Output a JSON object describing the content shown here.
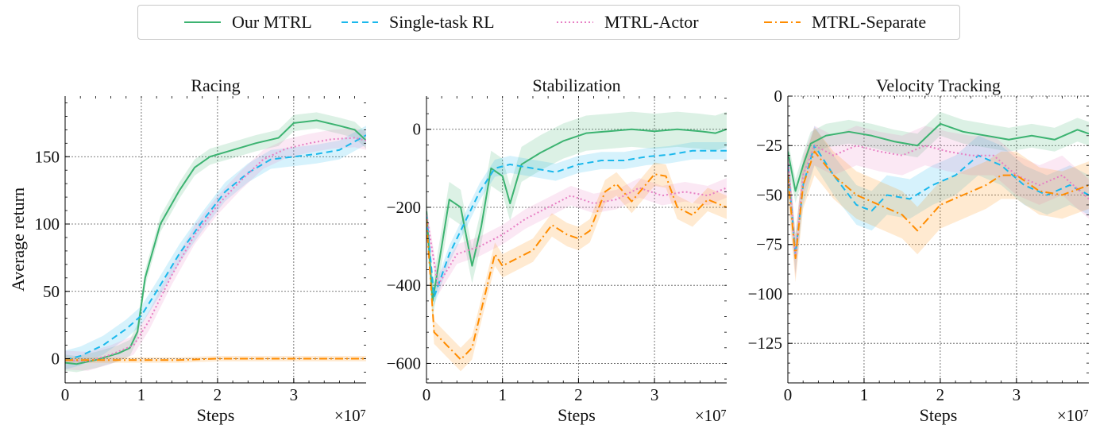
{
  "legend": {
    "items": [
      {
        "label": "Our MTRL",
        "color": "#3cb371",
        "dash": ""
      },
      {
        "label": "Single-task RL",
        "color": "#1ab8ec",
        "dash": "8,5"
      },
      {
        "label": "MTRL-Actor",
        "color": "#e77fc4",
        "dash": "2,3"
      },
      {
        "label": "MTRL-Separate",
        "color": "#ff8c00",
        "dash": "10,4,2,4"
      }
    ]
  },
  "chart_data": [
    {
      "type": "line",
      "title": "Racing",
      "xlabel": "Steps",
      "ylabel": "Average return",
      "x_multiplier": "×10⁷",
      "xlim": [
        0,
        3.95
      ],
      "ylim": [
        -18,
        195
      ],
      "xticks": [
        0,
        1,
        2,
        3
      ],
      "yticks": [
        0,
        50,
        100,
        150
      ],
      "grid": true,
      "series": [
        {
          "name": "Our MTRL",
          "band": 6,
          "x": [
            0,
            0.15,
            0.4,
            0.7,
            0.85,
            0.95,
            1.05,
            1.25,
            1.5,
            1.7,
            1.9,
            2.2,
            2.5,
            2.8,
            3.0,
            3.3,
            3.6,
            3.8,
            3.95
          ],
          "y": [
            -3,
            -4,
            -1,
            4,
            8,
            20,
            60,
            100,
            125,
            142,
            150,
            155,
            160,
            164,
            175,
            177,
            173,
            170,
            162
          ]
        },
        {
          "name": "Single-task RL",
          "band": 7,
          "x": [
            0,
            0.2,
            0.5,
            0.8,
            1.0,
            1.2,
            1.5,
            1.8,
            2.1,
            2.4,
            2.7,
            3.0,
            3.3,
            3.6,
            3.95
          ],
          "y": [
            -1,
            2,
            10,
            22,
            32,
            50,
            78,
            102,
            124,
            138,
            148,
            150,
            152,
            155,
            166
          ]
        },
        {
          "name": "MTRL-Actor",
          "band": 7,
          "x": [
            0,
            0.3,
            0.6,
            0.9,
            1.1,
            1.4,
            1.7,
            2.0,
            2.3,
            2.6,
            2.9,
            3.2,
            3.5,
            3.8,
            3.95
          ],
          "y": [
            -1,
            -2,
            3,
            10,
            28,
            62,
            92,
            114,
            132,
            148,
            156,
            160,
            163,
            164,
            162
          ]
        },
        {
          "name": "MTRL-Separate",
          "band": 2,
          "x": [
            0,
            0.5,
            1.0,
            1.5,
            2.0,
            2.5,
            3.0,
            3.5,
            3.95
          ],
          "y": [
            -1,
            -1,
            -1,
            -1,
            0,
            0,
            0,
            0,
            0
          ]
        }
      ]
    },
    {
      "type": "line",
      "title": "Stabilization",
      "xlabel": "Steps",
      "ylabel": "",
      "x_multiplier": "×10⁷",
      "xlim": [
        0,
        3.95
      ],
      "ylim": [
        -650,
        85
      ],
      "xticks": [
        0,
        1,
        2,
        3
      ],
      "yticks": [
        0,
        -200,
        -400,
        -600
      ],
      "grid": true,
      "series": [
        {
          "name": "Our MTRL",
          "band": 45,
          "x": [
            0,
            0.08,
            0.2,
            0.3,
            0.45,
            0.6,
            0.72,
            0.85,
            1.0,
            1.1,
            1.25,
            1.5,
            1.8,
            2.1,
            2.4,
            2.7,
            3.0,
            3.3,
            3.6,
            3.8,
            3.95
          ],
          "y": [
            -210,
            -440,
            -300,
            -180,
            -200,
            -350,
            -250,
            -100,
            -120,
            -190,
            -90,
            -60,
            -30,
            -10,
            -5,
            0,
            -5,
            0,
            -5,
            -10,
            0
          ]
        },
        {
          "name": "Single-task RL",
          "band": 22,
          "x": [
            0,
            0.1,
            0.3,
            0.5,
            0.7,
            0.9,
            1.1,
            1.4,
            1.7,
            2.0,
            2.3,
            2.6,
            2.9,
            3.2,
            3.5,
            3.95
          ],
          "y": [
            -220,
            -430,
            -320,
            -240,
            -160,
            -100,
            -90,
            -100,
            -110,
            -90,
            -80,
            -80,
            -70,
            -65,
            -55,
            -55
          ]
        },
        {
          "name": "MTRL-Actor",
          "band": 25,
          "x": [
            0,
            0.15,
            0.4,
            0.7,
            1.0,
            1.3,
            1.6,
            1.9,
            2.2,
            2.5,
            2.8,
            3.1,
            3.4,
            3.7,
            3.95
          ],
          "y": [
            -220,
            -400,
            -320,
            -300,
            -270,
            -230,
            -200,
            -170,
            -190,
            -180,
            -150,
            -170,
            -160,
            -170,
            -150
          ]
        },
        {
          "name": "MTRL-Separate",
          "band": 30,
          "x": [
            0,
            0.1,
            0.25,
            0.45,
            0.6,
            0.75,
            0.9,
            1.0,
            1.2,
            1.4,
            1.65,
            1.85,
            2.0,
            2.15,
            2.35,
            2.5,
            2.7,
            2.85,
            3.0,
            3.15,
            3.3,
            3.5,
            3.7,
            3.95
          ],
          "y": [
            -230,
            -520,
            -550,
            -590,
            -560,
            -440,
            -320,
            -350,
            -330,
            -310,
            -245,
            -270,
            -280,
            -260,
            -160,
            -140,
            -185,
            -150,
            -115,
            -120,
            -200,
            -220,
            -180,
            -200
          ]
        }
      ]
    },
    {
      "type": "line",
      "title": "Velocity Tracking",
      "xlabel": "Steps",
      "ylabel": "",
      "x_multiplier": "×10⁷",
      "xlim": [
        0,
        3.95
      ],
      "ylim": [
        -145,
        0
      ],
      "xticks": [
        0,
        1,
        2,
        3
      ],
      "yticks": [
        0,
        -25,
        -50,
        -75,
        -100,
        -125
      ],
      "grid": true,
      "series": [
        {
          "name": "Our MTRL",
          "band": 6,
          "x": [
            0,
            0.1,
            0.2,
            0.3,
            0.5,
            0.8,
            1.1,
            1.4,
            1.7,
            2.0,
            2.3,
            2.6,
            2.9,
            3.2,
            3.5,
            3.8,
            3.95
          ],
          "y": [
            -28,
            -48,
            -35,
            -24,
            -20,
            -18,
            -20,
            -23,
            -25,
            -14,
            -18,
            -20,
            -22,
            -20,
            -22,
            -17,
            -19
          ]
        },
        {
          "name": "Single-task RL",
          "band": 10,
          "x": [
            0,
            0.1,
            0.2,
            0.35,
            0.6,
            0.9,
            1.1,
            1.3,
            1.6,
            1.9,
            2.2,
            2.5,
            2.8,
            3.1,
            3.4,
            3.7,
            3.95
          ],
          "y": [
            -35,
            -80,
            -45,
            -25,
            -40,
            -55,
            -58,
            -50,
            -52,
            -45,
            -40,
            -30,
            -35,
            -45,
            -50,
            -45,
            -50
          ]
        },
        {
          "name": "MTRL-Actor",
          "band": 10,
          "x": [
            0,
            0.1,
            0.2,
            0.35,
            0.6,
            0.9,
            1.2,
            1.5,
            1.8,
            2.1,
            2.4,
            2.7,
            3.0,
            3.3,
            3.6,
            3.95
          ],
          "y": [
            -30,
            -82,
            -40,
            -25,
            -30,
            -25,
            -28,
            -30,
            -25,
            -28,
            -30,
            -30,
            -40,
            -45,
            -40,
            -52
          ]
        },
        {
          "name": "MTRL-Separate",
          "band": 12,
          "x": [
            0,
            0.1,
            0.2,
            0.35,
            0.6,
            0.9,
            1.2,
            1.5,
            1.7,
            2.0,
            2.3,
            2.6,
            2.8,
            3.0,
            3.3,
            3.6,
            3.95
          ],
          "y": [
            -40,
            -82,
            -45,
            -28,
            -40,
            -50,
            -55,
            -60,
            -68,
            -55,
            -50,
            -45,
            -40,
            -40,
            -48,
            -50,
            -45
          ]
        }
      ]
    }
  ]
}
